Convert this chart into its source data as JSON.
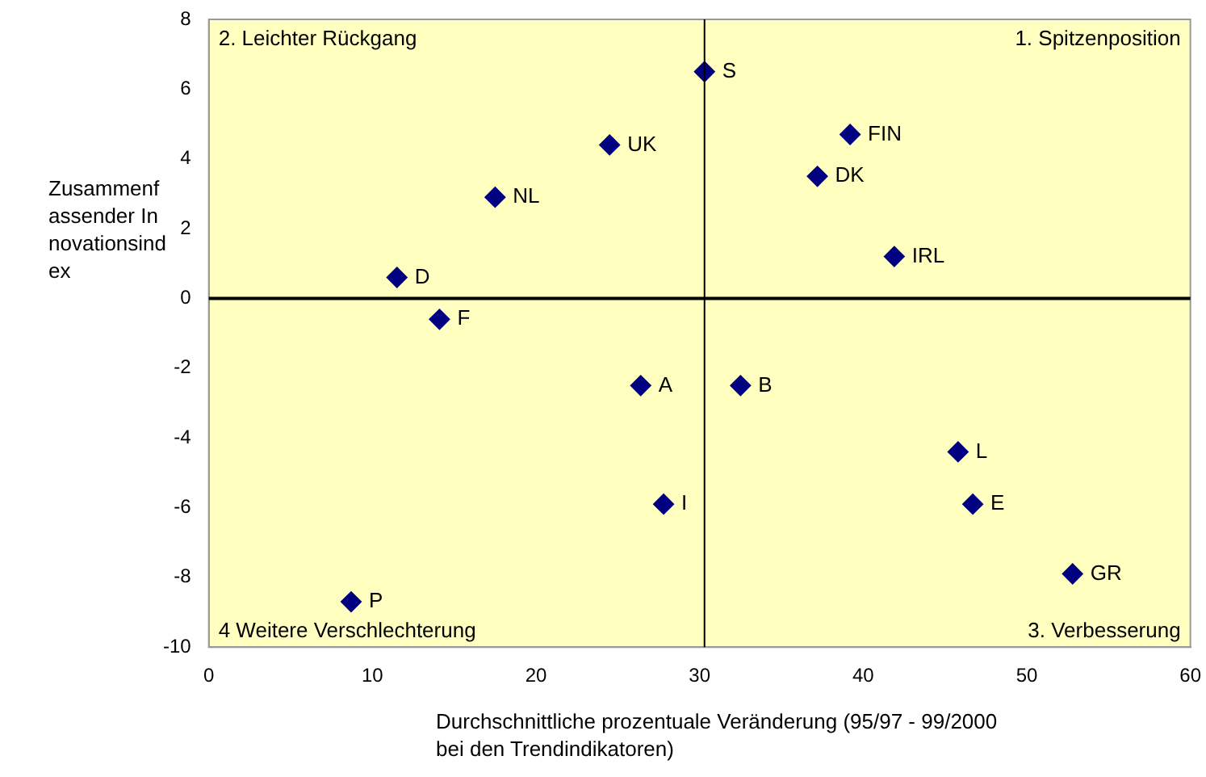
{
  "chart_data": {
    "type": "scatter",
    "xlabel": "Durchschnittliche prozentuale Veränderung (95/97 - 99/2000 bei den Trendindikatoren)",
    "ylabel": "Zusammenfassender Innovationsindex",
    "xlim": [
      0,
      60
    ],
    "xticks": [
      0,
      10,
      20,
      30,
      40,
      50,
      60
    ],
    "ylim": [
      -10,
      8
    ],
    "yticks": [
      -10,
      -8,
      -6,
      -4,
      -2,
      0,
      2,
      4,
      6,
      8
    ],
    "grid": false,
    "legend": false,
    "marker": "diamond",
    "annotations": [
      "2. Leichter Rückgang",
      "1. Spitzenposition",
      "4 Weitere Verschlechterung",
      "3. Verbesserung"
    ],
    "ref_lines": [
      {
        "axis": "x",
        "value": 30.3,
        "color": "#000000"
      },
      {
        "axis": "y",
        "value": 0,
        "color": "#000000"
      }
    ],
    "series": [
      {
        "name": "S",
        "color": "#000080",
        "x": [
          30.3
        ],
        "values": [
          6.5
        ]
      },
      {
        "name": "UK",
        "color": "#000080",
        "x": [
          24.5
        ],
        "values": [
          4.4
        ]
      },
      {
        "name": "FIN",
        "color": "#000080",
        "x": [
          39.2
        ],
        "values": [
          4.7
        ]
      },
      {
        "name": "DK",
        "color": "#000080",
        "x": [
          37.2
        ],
        "values": [
          3.5
        ]
      },
      {
        "name": "NL",
        "color": "#000080",
        "x": [
          17.5
        ],
        "values": [
          2.9
        ]
      },
      {
        "name": "IRL",
        "color": "#000080",
        "x": [
          41.9
        ],
        "values": [
          1.2
        ]
      },
      {
        "name": "D",
        "color": "#000080",
        "x": [
          11.5
        ],
        "values": [
          0.6
        ]
      },
      {
        "name": "F",
        "color": "#000080",
        "x": [
          14.1
        ],
        "values": [
          -0.6
        ]
      },
      {
        "name": "A",
        "color": "#000080",
        "x": [
          26.4
        ],
        "values": [
          -2.5
        ]
      },
      {
        "name": "B",
        "color": "#000080",
        "x": [
          32.5
        ],
        "values": [
          -2.5
        ]
      },
      {
        "name": "L",
        "color": "#000080",
        "x": [
          45.8
        ],
        "values": [
          -4.4
        ]
      },
      {
        "name": "E",
        "color": "#000080",
        "x": [
          46.7
        ],
        "values": [
          -5.9
        ]
      },
      {
        "name": "I",
        "color": "#000080",
        "x": [
          27.8
        ],
        "values": [
          -5.9
        ]
      },
      {
        "name": "GR",
        "color": "#000080",
        "x": [
          52.8
        ],
        "values": [
          -7.9
        ]
      },
      {
        "name": "P",
        "color": "#000080",
        "x": [
          8.7
        ],
        "values": [
          -8.7
        ]
      }
    ]
  }
}
